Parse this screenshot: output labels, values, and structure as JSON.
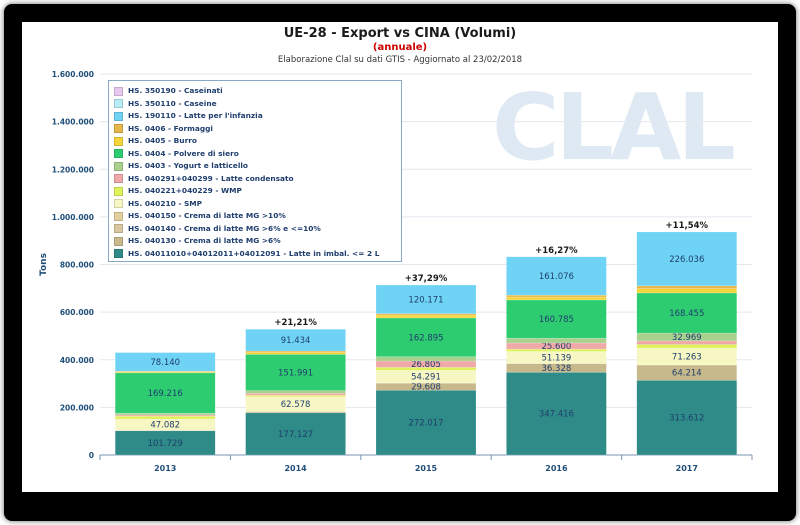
{
  "header": {
    "title": "UE-28 - Export vs CINA (Volumi)",
    "subtitle": "(annuale)",
    "source": "Elaborazione Clal su dati GTIS - Aggiornato al 23/02/2018"
  },
  "watermark": "CLAL",
  "colors": {
    "axis_text": "#1f4e79",
    "subtitle": "#cc0000"
  },
  "chart_data": {
    "type": "bar",
    "stacked": true,
    "title": "UE-28 - Export vs CINA (Volumi)",
    "subtitle": "(annuale)",
    "ylabel": "Tons",
    "xlabel": "",
    "ylim": [
      0,
      1600000
    ],
    "yticks": [
      0,
      200000,
      400000,
      600000,
      800000,
      1000000,
      1200000,
      1400000,
      1600000
    ],
    "ytick_labels": [
      "0",
      "200.000",
      "400.000",
      "600.000",
      "800.000",
      "1.000.000",
      "1.200.000",
      "1.400.000",
      "1.600.000"
    ],
    "categories": [
      "2013",
      "2014",
      "2015",
      "2016",
      "2017"
    ],
    "grid": true,
    "legend_position": "top-left",
    "series": [
      {
        "name": "HS. 04011010+04012011+04012091 - Latte in imbal. <= 2 L",
        "color": "#2e8b87",
        "values": [
          101729,
          177127,
          272017,
          347416,
          313612
        ],
        "labels": [
          "101.729",
          "177.127",
          "272.017",
          "347.416",
          "313.612"
        ]
      },
      {
        "name": "HS. 040130 - Crema di latte MG >6%",
        "color": "#c8b98c",
        "values": [
          2000,
          5000,
          29608,
          36328,
          64214
        ],
        "labels": [
          "",
          "",
          "29.608",
          "36.328",
          "64.214"
        ]
      },
      {
        "name": "HS. 040140 - Crema di latte MG >6% e <=10%",
        "color": "#d9c89f",
        "values": [
          0,
          0,
          0,
          0,
          0
        ],
        "labels": [
          "",
          "",
          "",
          "",
          ""
        ]
      },
      {
        "name": "HS. 040150 - Crema di latte MG >10%",
        "color": "#e3cf9d",
        "values": [
          0,
          0,
          0,
          0,
          0
        ],
        "labels": [
          "",
          "",
          "",
          "",
          ""
        ]
      },
      {
        "name": "HS. 040210 - SMP",
        "color": "#f7f7c4",
        "values": [
          47082,
          62578,
          54291,
          51139,
          71263
        ],
        "labels": [
          "47.082",
          "62.578",
          "54.291",
          "51.139",
          "71.263"
        ]
      },
      {
        "name": "HS. 040221+040229 - WMP",
        "color": "#dff25a",
        "values": [
          12000,
          6000,
          12000,
          10000,
          15000
        ],
        "labels": [
          "",
          "",
          "",
          "",
          ""
        ]
      },
      {
        "name": "HS. 040291+040299 - Latte condensato",
        "color": "#f0a8a8",
        "values": [
          5000,
          8000,
          26805,
          25600,
          15000
        ],
        "labels": [
          "",
          "",
          "26.805",
          "25.600",
          ""
        ]
      },
      {
        "name": "HS. 0403 - Yogurt e latticello",
        "color": "#a9d18e",
        "values": [
          8000,
          12000,
          18000,
          20000,
          32969
        ],
        "labels": [
          "",
          "",
          "",
          "",
          "32.969"
        ]
      },
      {
        "name": "HS. 0404 - Polvere di siero",
        "color": "#2ecc71",
        "values": [
          169216,
          151991,
          162895,
          160785,
          168455
        ],
        "labels": [
          "169.216",
          "151.991",
          "162.895",
          "160.785",
          "168.455"
        ]
      },
      {
        "name": "HS. 0405 - Burro",
        "color": "#f5d63a",
        "values": [
          4000,
          8000,
          12000,
          12000,
          18000
        ],
        "labels": [
          "",
          "",
          "",
          "",
          ""
        ]
      },
      {
        "name": "HS. 0406 - Formaggi",
        "color": "#e6b84a",
        "values": [
          3000,
          6000,
          6000,
          8000,
          12000
        ],
        "labels": [
          "",
          "",
          "",
          "",
          ""
        ]
      },
      {
        "name": "HS. 190110 - Latte per l'infanzia",
        "color": "#6fd3f5",
        "values": [
          78140,
          91434,
          120171,
          161076,
          226036
        ],
        "labels": [
          "78.140",
          "91.434",
          "120.171",
          "161.076",
          "226.036"
        ]
      },
      {
        "name": "HS. 350110 - Caseine",
        "color": "#b8ecf7",
        "values": [
          0,
          0,
          0,
          0,
          0
        ],
        "labels": [
          "",
          "",
          "",
          "",
          ""
        ]
      },
      {
        "name": "HS. 350190 - Caseinati",
        "color": "#e8c8f0",
        "values": [
          0,
          0,
          0,
          0,
          0
        ],
        "labels": [
          "",
          "",
          "",
          "",
          ""
        ]
      }
    ],
    "growth_labels": [
      "",
      "+21,21%",
      "+37,29%",
      "+16,27%",
      "+11,54%"
    ]
  }
}
